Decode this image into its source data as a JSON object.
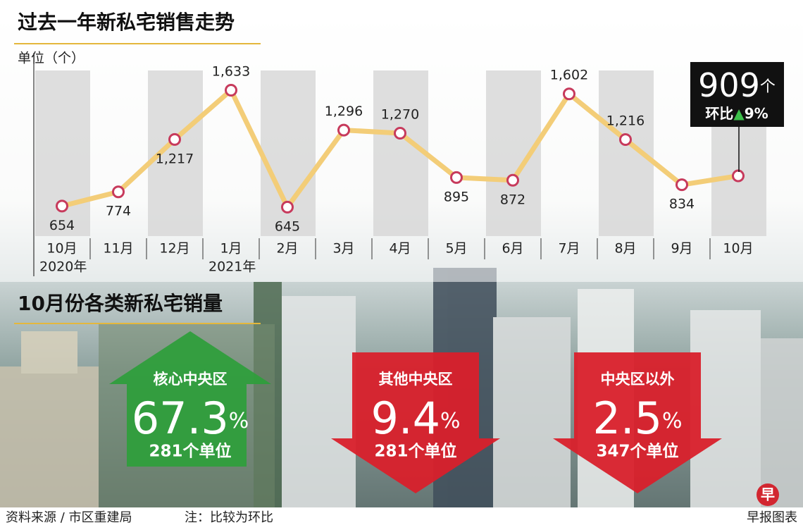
{
  "chart_data": {
    "type": "line",
    "title": "过去一年新私宅销售走势",
    "y_label": "单位（个）",
    "categories": [
      "10月",
      "11月",
      "12月",
      "1月",
      "2月",
      "3月",
      "4月",
      "5月",
      "6月",
      "7月",
      "8月",
      "9月",
      "10月"
    ],
    "year_labels": [
      "2020年",
      null,
      null,
      "2021年",
      null,
      null,
      null,
      null,
      null,
      null,
      null,
      null,
      null
    ],
    "values": [
      654,
      774,
      1217,
      1633,
      645,
      1296,
      1270,
      895,
      872,
      1602,
      1216,
      834,
      909
    ],
    "value_labels": [
      "654",
      "774",
      "1,217",
      "1,633",
      "645",
      "1,296",
      "1,270",
      "895",
      "872",
      "1,602",
      "1,216",
      "834",
      null
    ],
    "ylim": [
      400,
      1800
    ],
    "color": "#f3cd78",
    "marker_color": "#c73a5c",
    "callout": {
      "value": "909",
      "unit": "个",
      "change_label": "环比",
      "change_arrow": "▲",
      "change_value": "9%"
    }
  },
  "breakdown": {
    "title": "10月份各类新私宅销量",
    "items": [
      {
        "name": "核心中央区",
        "share": "67.3",
        "unit": "%",
        "units": "281个单位",
        "direction": "up"
      },
      {
        "name": "其他中央区",
        "share": "9.4",
        "unit": "%",
        "units": "281个单位",
        "direction": "down"
      },
      {
        "name": "中央区以外",
        "share": "2.5",
        "unit": "%",
        "units": "347个单位",
        "direction": "down"
      }
    ]
  },
  "footer": {
    "source": "资料来源 / 市区重建局",
    "note": "注：比较为环比",
    "credit": "早报图表",
    "logo": "早"
  }
}
